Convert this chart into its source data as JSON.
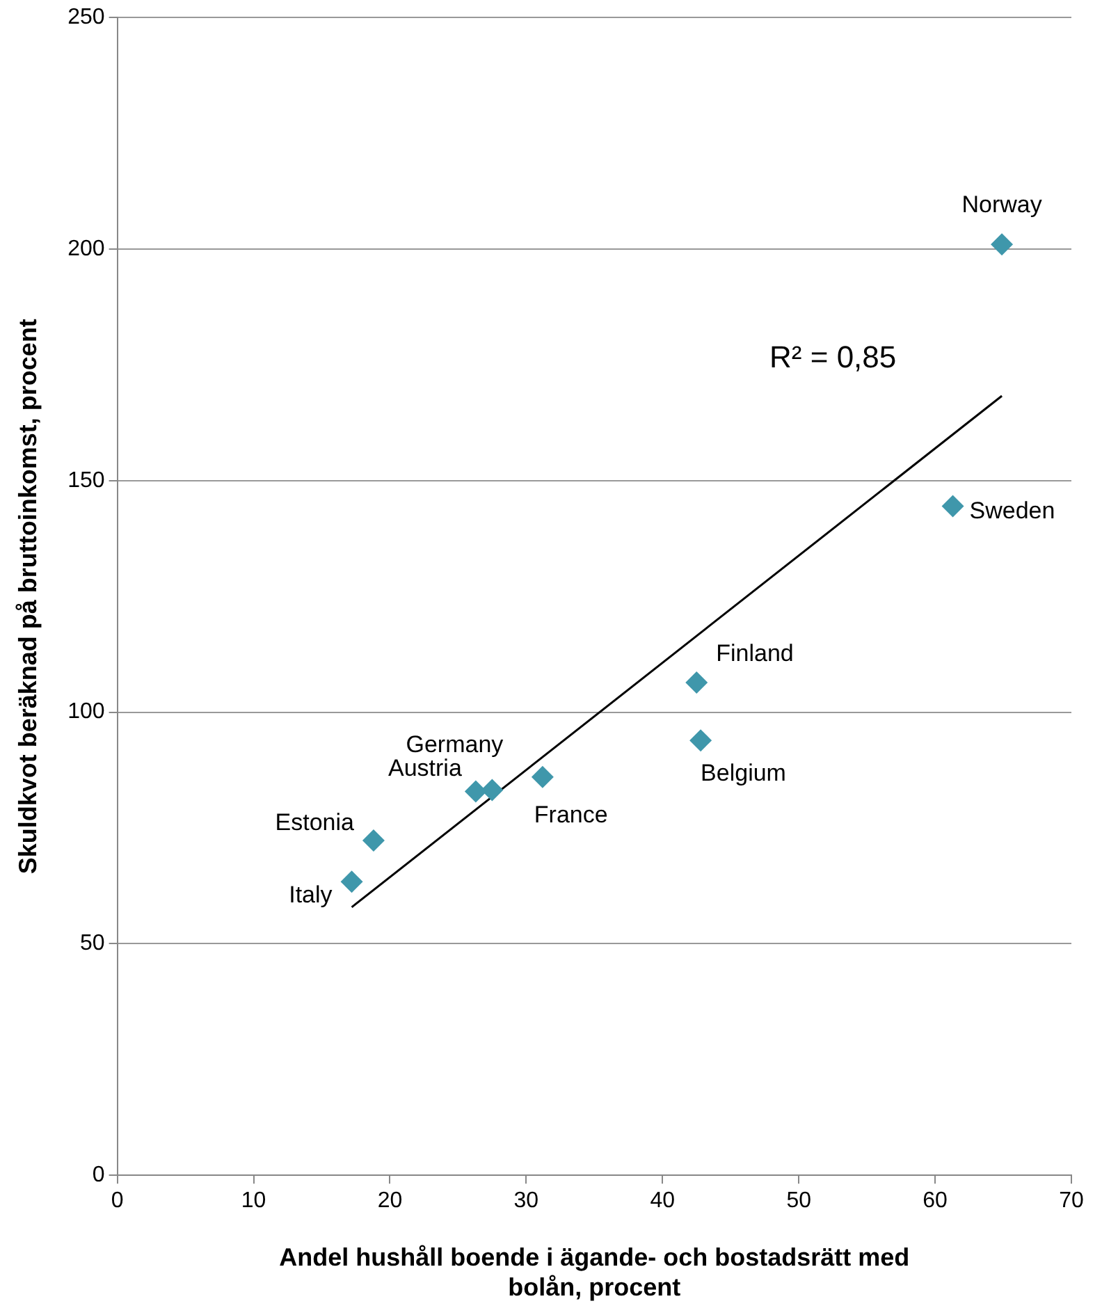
{
  "chart_data": {
    "type": "scatter",
    "xlabel": "Andel hushåll boende i ägande- och bostadsrätt med bolån, procent",
    "ylabel": "Skuldkvot beräknad på bruttoinkomst, procent",
    "series": [
      {
        "type": "scatter",
        "color": "#3f97ab",
        "x": [
          64.9,
          61.3,
          42.5,
          42.8,
          31.2,
          27.5,
          26.3,
          18.8,
          17.2
        ],
        "values": [
          201,
          144.5,
          106.4,
          93.9,
          86,
          83.2,
          82.9,
          72.3,
          63.4
        ],
        "value_labels": [
          "Norway",
          "Sweden",
          "Finland",
          "Belgium",
          "France",
          "Germany",
          "Austria",
          "Estonia",
          "Italy"
        ],
        "marker": "diamond"
      },
      {
        "type": "line",
        "color": "#000000",
        "x": [
          17.2,
          64.9
        ],
        "values": [
          57.9,
          168.3
        ],
        "marker": "none",
        "line_style": "solid"
      }
    ],
    "annotations": [
      "R² = 0,85"
    ],
    "xlim": [
      0,
      70
    ],
    "xticks": [
      0,
      10,
      20,
      30,
      40,
      50,
      60,
      70
    ],
    "ylim": [
      0,
      250
    ],
    "yticks": [
      0,
      50,
      100,
      150,
      200,
      250
    ],
    "grid": "y",
    "legend": false
  }
}
